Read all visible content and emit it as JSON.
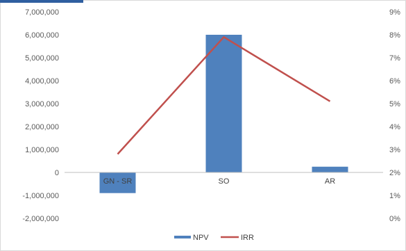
{
  "chart_data": {
    "type": "bar",
    "categories": [
      "GN - SR",
      "SO",
      "AR"
    ],
    "series": [
      {
        "name": "NPV",
        "chart": "bar",
        "axis": "left",
        "values": [
          -900000,
          6000000,
          250000
        ],
        "color": "#4F81BD"
      },
      {
        "name": "IRR",
        "chart": "line",
        "axis": "right",
        "values": [
          0.028,
          0.079,
          0.051
        ],
        "color": "#C0504D"
      }
    ],
    "y_left": {
      "ylim": [
        -2000000,
        7000000
      ],
      "ticks": [
        7000000,
        6000000,
        5000000,
        4000000,
        3000000,
        2000000,
        1000000,
        0,
        -1000000,
        -2000000
      ],
      "tick_labels": [
        "7,000,000",
        "6,000,000",
        "5,000,000",
        "4,000,000",
        "3,000,000",
        "2,000,000",
        "1,000,000",
        "0",
        "-1,000,000",
        "-2,000,000"
      ]
    },
    "y_right": {
      "ylim": [
        0,
        0.09
      ],
      "ticks": [
        0.09,
        0.08,
        0.07,
        0.06,
        0.05,
        0.04,
        0.03,
        0.02,
        0.01,
        0.0
      ],
      "tick_labels": [
        "9%",
        "8%",
        "7%",
        "6%",
        "5%",
        "4%",
        "3%",
        "2%",
        "1%",
        "0%"
      ]
    },
    "grid": false,
    "legend": {
      "position": "bottom",
      "entries": [
        "NPV",
        "IRR"
      ]
    },
    "title": "",
    "xlabel": "",
    "ylabel": ""
  }
}
